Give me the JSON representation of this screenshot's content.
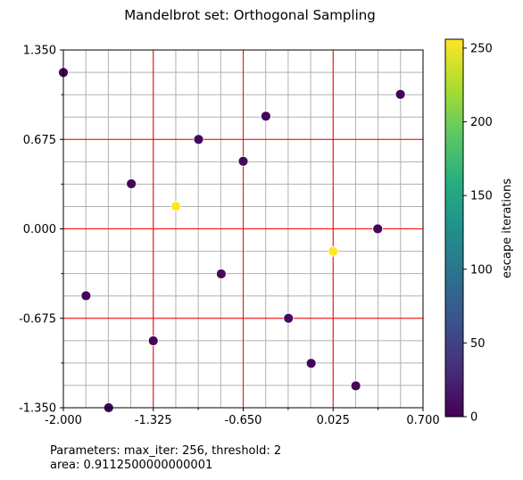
{
  "chart_data": {
    "type": "scatter",
    "title": "Mandelbrot set: Orthogonal Sampling",
    "xlabel": "",
    "ylabel": "",
    "xlim": [
      -2.0,
      0.7
    ],
    "ylim": [
      -1.35,
      1.35
    ],
    "x_ticks": [
      "-2.000",
      "-1.325",
      "-0.650",
      "0.025",
      "0.700"
    ],
    "y_ticks": [
      "1.350",
      "0.675",
      "0.000",
      "-0.675",
      "-1.350"
    ],
    "x_tick_values": [
      -2.0,
      -1.325,
      -0.65,
      0.025,
      0.7
    ],
    "y_tick_values": [
      1.35,
      0.675,
      0.0,
      -0.675,
      -1.35
    ],
    "grid": true,
    "fine_grid_step": 0.16875,
    "stratum_lines": {
      "x": [
        -1.325,
        -0.65,
        0.025
      ],
      "y": [
        0.675,
        0.0,
        -0.675
      ],
      "color": "#ff0000"
    },
    "colorbar": {
      "label": "escape iterations",
      "ticks": [
        "0",
        "50",
        "100",
        "150",
        "200",
        "250"
      ],
      "tick_values": [
        0,
        50,
        100,
        150,
        200,
        250
      ],
      "range": [
        0,
        256
      ],
      "colormap": "viridis"
    },
    "points": [
      {
        "x": -2.0,
        "y": 1.18,
        "iter": 2
      },
      {
        "x": -1.83,
        "y": -0.505,
        "iter": 3
      },
      {
        "x": -1.66,
        "y": -1.35,
        "iter": 2
      },
      {
        "x": -1.49,
        "y": 0.34,
        "iter": 4
      },
      {
        "x": -1.325,
        "y": -0.845,
        "iter": 3
      },
      {
        "x": -1.155,
        "y": 0.17,
        "iter": 256
      },
      {
        "x": -0.985,
        "y": 0.675,
        "iter": 5
      },
      {
        "x": -0.815,
        "y": -0.34,
        "iter": 4
      },
      {
        "x": -0.65,
        "y": 0.51,
        "iter": 6
      },
      {
        "x": -0.48,
        "y": 0.85,
        "iter": 4
      },
      {
        "x": -0.31,
        "y": -0.675,
        "iter": 8
      },
      {
        "x": -0.14,
        "y": -1.015,
        "iter": 3
      },
      {
        "x": 0.025,
        "y": -0.17,
        "iter": 256
      },
      {
        "x": 0.195,
        "y": -1.185,
        "iter": 3
      },
      {
        "x": 0.36,
        "y": 0.0,
        "iter": 5
      },
      {
        "x": 0.53,
        "y": 1.015,
        "iter": 3
      }
    ],
    "annotations": [
      "Parameters: max_iter: 256, threshold: 2",
      "area: 0.9112500000000001"
    ]
  }
}
